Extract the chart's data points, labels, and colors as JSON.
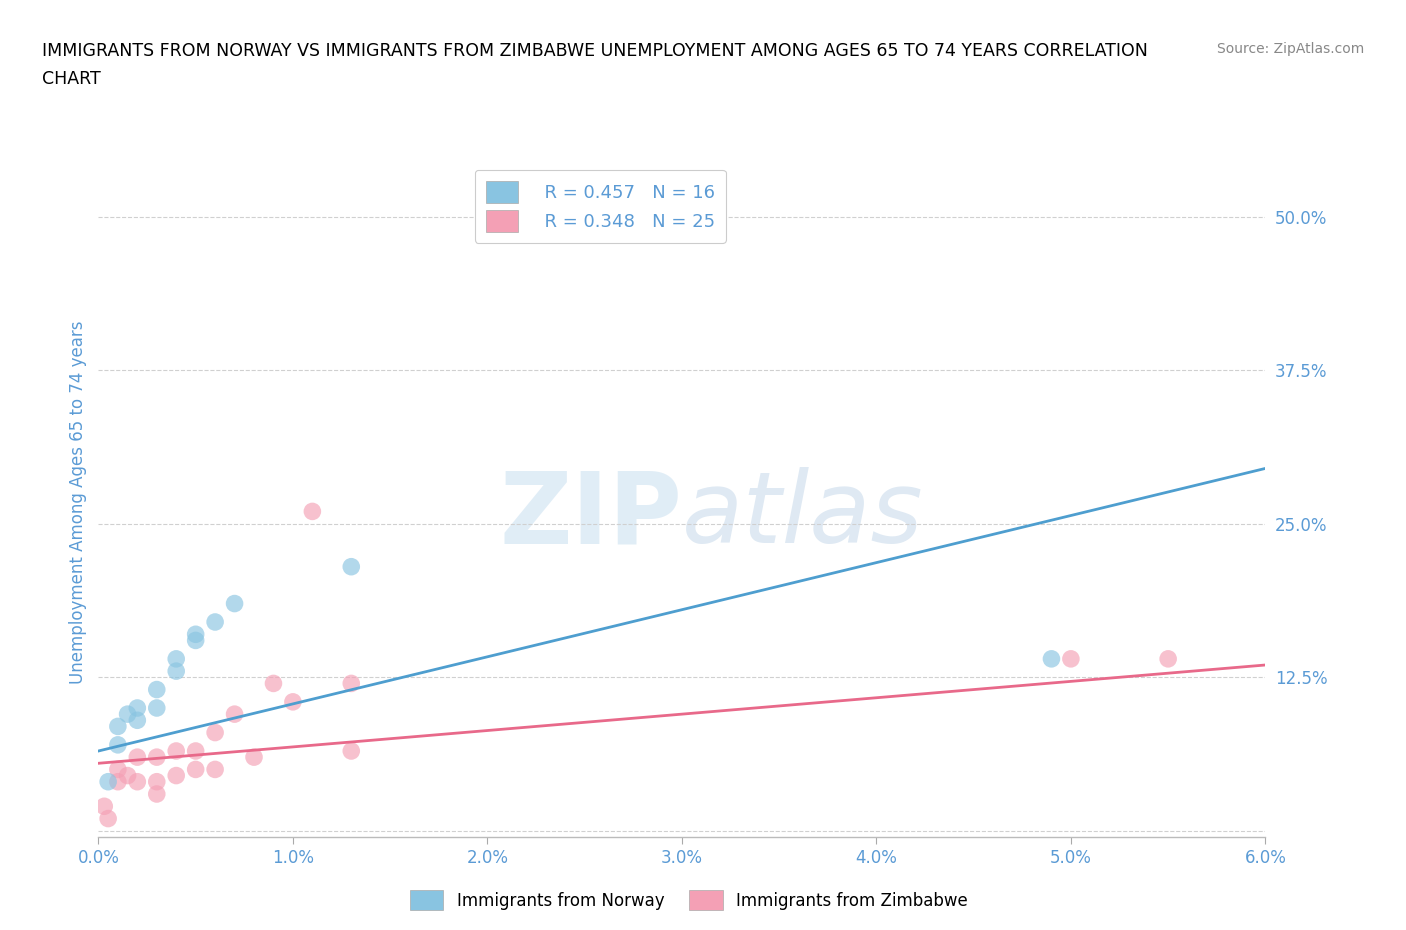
{
  "title_line1": "IMMIGRANTS FROM NORWAY VS IMMIGRANTS FROM ZIMBABWE UNEMPLOYMENT AMONG AGES 65 TO 74 YEARS CORRELATION",
  "title_line2": "CHART",
  "source_text": "Source: ZipAtlas.com",
  "ylabel": "Unemployment Among Ages 65 to 74 years",
  "xlim": [
    0.0,
    0.06
  ],
  "ylim": [
    -0.005,
    0.54
  ],
  "yticks": [
    0.0,
    0.125,
    0.25,
    0.375,
    0.5
  ],
  "ytick_labels": [
    "",
    "12.5%",
    "25.0%",
    "37.5%",
    "50.0%"
  ],
  "xticks": [
    0.0,
    0.01,
    0.02,
    0.03,
    0.04,
    0.05,
    0.06
  ],
  "xtick_labels": [
    "0.0%",
    "1.0%",
    "2.0%",
    "3.0%",
    "4.0%",
    "5.0%",
    "6.0%"
  ],
  "norway_color": "#89c4e1",
  "zimbabwe_color": "#f4a0b5",
  "norway_line_color": "#4e9ecf",
  "zimbabwe_line_color": "#e8698a",
  "watermark_ZIP": "ZIP",
  "watermark_atlas": "atlas",
  "legend_R_norway": "R = 0.457",
  "legend_N_norway": "N = 16",
  "legend_R_zimbabwe": "R = 0.348",
  "legend_N_zimbabwe": "N = 25",
  "norway_scatter_x": [
    0.0005,
    0.001,
    0.001,
    0.0015,
    0.002,
    0.002,
    0.003,
    0.003,
    0.004,
    0.004,
    0.005,
    0.005,
    0.006,
    0.007,
    0.013,
    0.049
  ],
  "norway_scatter_y": [
    0.04,
    0.07,
    0.085,
    0.095,
    0.09,
    0.1,
    0.1,
    0.115,
    0.13,
    0.14,
    0.155,
    0.16,
    0.17,
    0.185,
    0.215,
    0.14
  ],
  "zimbabwe_scatter_x": [
    0.0003,
    0.0005,
    0.001,
    0.001,
    0.0015,
    0.002,
    0.002,
    0.003,
    0.003,
    0.003,
    0.004,
    0.004,
    0.005,
    0.005,
    0.006,
    0.006,
    0.007,
    0.008,
    0.009,
    0.01,
    0.011,
    0.013,
    0.013,
    0.05,
    0.055
  ],
  "zimbabwe_scatter_y": [
    0.02,
    0.01,
    0.04,
    0.05,
    0.045,
    0.04,
    0.06,
    0.03,
    0.04,
    0.06,
    0.045,
    0.065,
    0.05,
    0.065,
    0.05,
    0.08,
    0.095,
    0.06,
    0.12,
    0.105,
    0.26,
    0.065,
    0.12,
    0.14,
    0.14
  ],
  "norway_trend_x": [
    0.0,
    0.06
  ],
  "norway_trend_y": [
    0.065,
    0.295
  ],
  "zimbabwe_trend_x": [
    0.0,
    0.06
  ],
  "zimbabwe_trend_y": [
    0.055,
    0.135
  ],
  "background_color": "#ffffff",
  "grid_color": "#d0d0d0",
  "axis_label_color": "#5b9bd5",
  "tick_label_color": "#5b9bd5",
  "legend_label_color": "#5b9bd5"
}
